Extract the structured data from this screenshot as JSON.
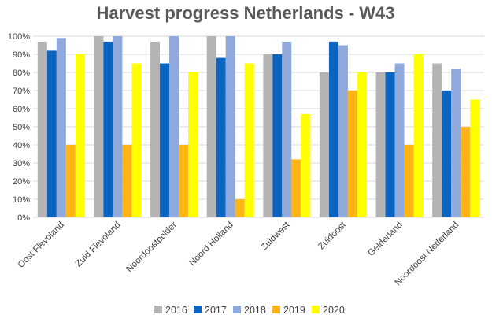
{
  "chart_data": {
    "type": "bar",
    "title": "Harvest progress Netherlands - W43",
    "xlabel": "",
    "ylabel": "",
    "ylim": [
      0,
      100
    ],
    "yticks": [
      "0%",
      "10%",
      "20%",
      "30%",
      "40%",
      "50%",
      "60%",
      "70%",
      "80%",
      "90%",
      "100%"
    ],
    "grid": true,
    "legend_position": "bottom",
    "categories": [
      "Oost Flevoland",
      "Zuid Flevoland",
      "Noordoostpolder",
      "Noord Holland",
      "Zuidwest",
      "Zuidoost",
      "Gelderland",
      "Noordoost Nederland"
    ],
    "series": [
      {
        "name": "2016",
        "color": "#b4b4b4",
        "values": [
          97,
          100,
          97,
          100,
          90,
          80,
          80,
          85
        ]
      },
      {
        "name": "2017",
        "color": "#0b64c0",
        "values": [
          92,
          97,
          85,
          88,
          90,
          97,
          80,
          70
        ]
      },
      {
        "name": "2018",
        "color": "#8fa9dc",
        "values": [
          99,
          100,
          100,
          100,
          97,
          95,
          85,
          82
        ]
      },
      {
        "name": "2019",
        "color": "#fdb515",
        "values": [
          40,
          40,
          40,
          10,
          32,
          70,
          40,
          50
        ]
      },
      {
        "name": "2020",
        "color": "#ffff00",
        "values": [
          90,
          85,
          80,
          85,
          57,
          80,
          90,
          65
        ]
      }
    ]
  }
}
